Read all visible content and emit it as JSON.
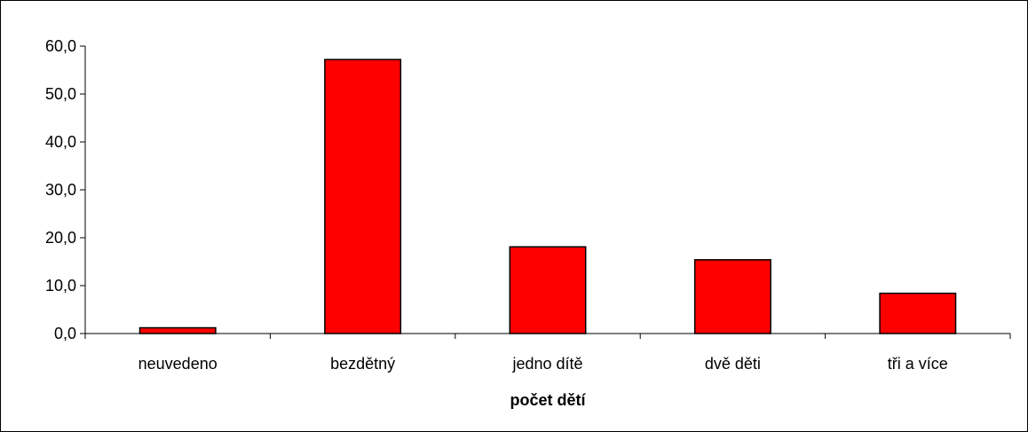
{
  "chart_data": {
    "type": "bar",
    "title": "",
    "xlabel": "počet dětí",
    "ylabel": "",
    "categories": [
      "neuvedeno",
      "bezdětný",
      "jedno dítě",
      "dvě děti",
      "tři a více"
    ],
    "values": [
      1.2,
      57.2,
      18.1,
      15.4,
      8.4
    ],
    "ylim": [
      0,
      60
    ],
    "yticks": [
      "0,0",
      "10,0",
      "20,0",
      "30,0",
      "40,0",
      "50,0",
      "60,0"
    ],
    "grid": false,
    "legend": "none",
    "bar_color": "#ff0000",
    "bar_outline_color": "#000000"
  }
}
